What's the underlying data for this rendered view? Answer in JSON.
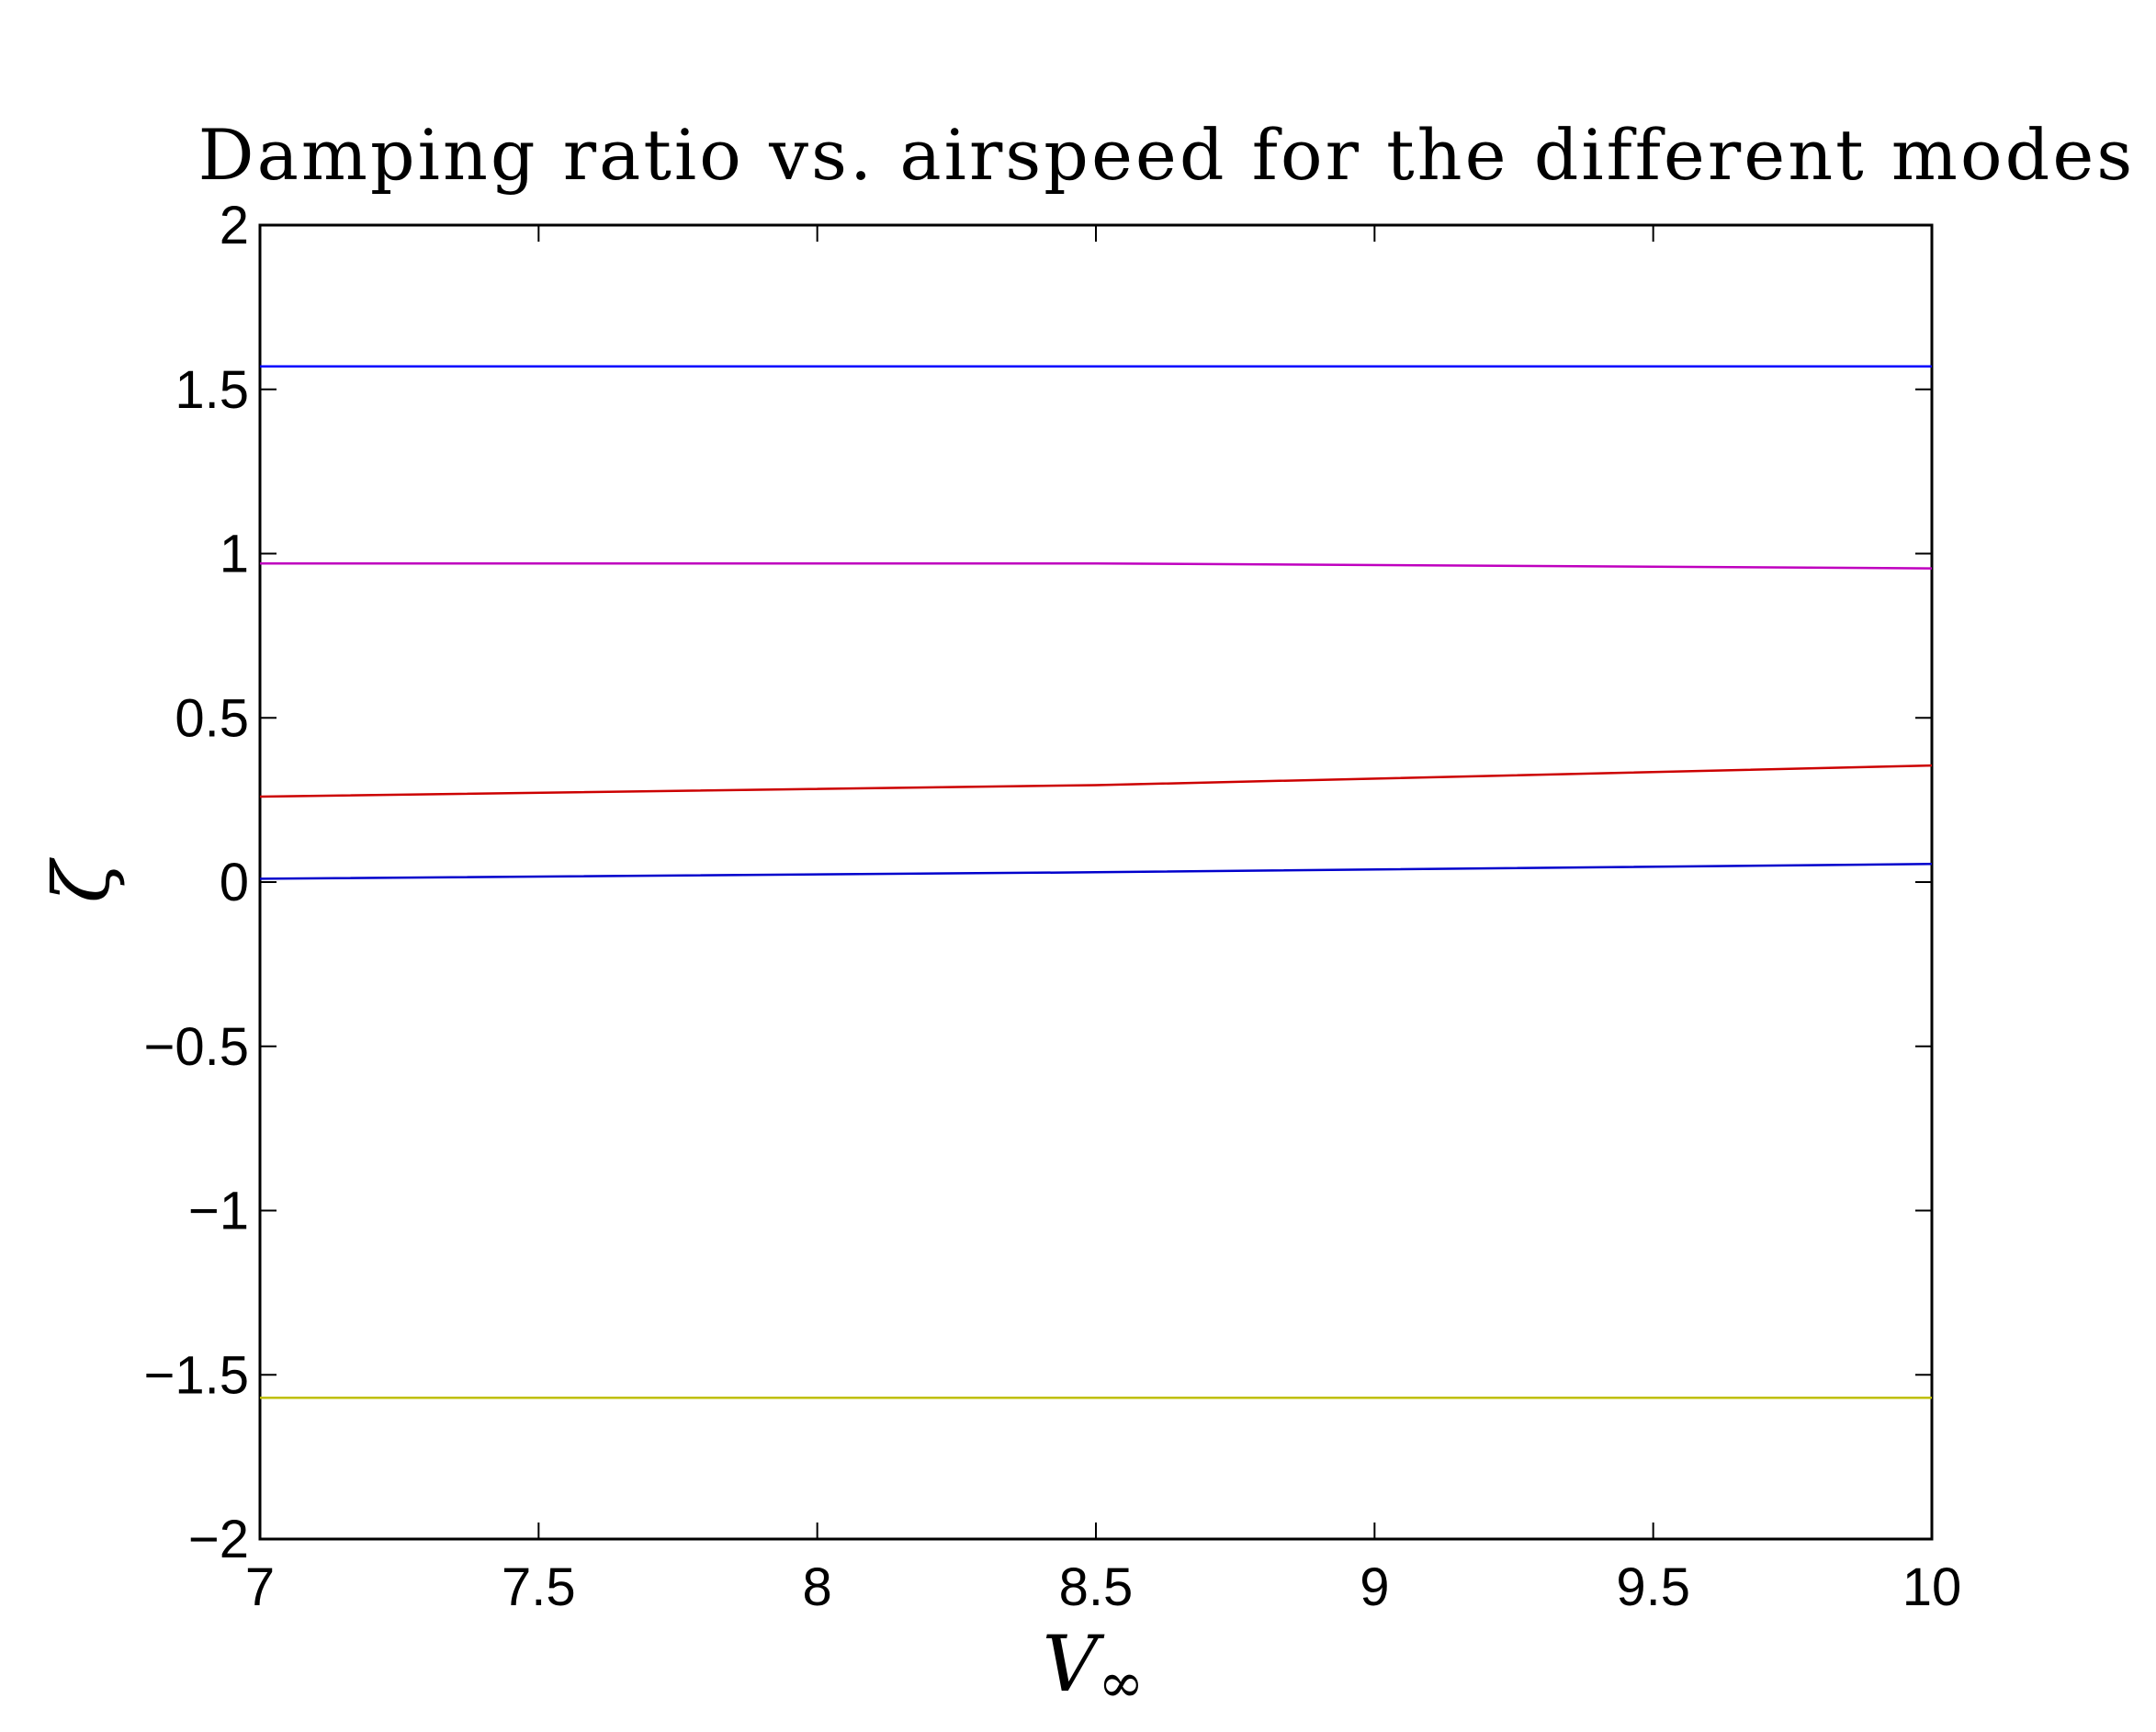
{
  "chart_data": {
    "type": "line",
    "title": "Damping ratio vs. airspeed for the different modes",
    "xlabel": "V",
    "xlabel_subscript": "∞",
    "ylabel": "ζ",
    "xlim": [
      7,
      10
    ],
    "ylim": [
      -2,
      2
    ],
    "xticks": [
      7,
      7.5,
      8,
      8.5,
      9,
      9.5,
      10
    ],
    "yticks": [
      -2,
      -1.5,
      -1,
      -0.5,
      0,
      0.5,
      1,
      1.5,
      2
    ],
    "xtick_labels": [
      "7",
      "7.5",
      "8",
      "8.5",
      "9",
      "9.5",
      "10"
    ],
    "ytick_labels": [
      "−2",
      "−1.5",
      "−1",
      "−0.5",
      "0",
      "0.5",
      "1",
      "1.5",
      "2"
    ],
    "grid": false,
    "series": [
      {
        "color": "#0000ff",
        "x": [
          7,
          8.5,
          10
        ],
        "values": [
          1.57,
          1.57,
          1.57
        ]
      },
      {
        "color": "#bf00bf",
        "x": [
          7,
          8.5,
          10
        ],
        "values": [
          0.97,
          0.97,
          0.955
        ]
      },
      {
        "color": "#cc0000",
        "x": [
          7,
          8.5,
          10
        ],
        "values": [
          0.26,
          0.295,
          0.355
        ]
      },
      {
        "color": "#0000cc",
        "x": [
          7,
          8.5,
          10
        ],
        "values": [
          0.01,
          0.03,
          0.055
        ]
      },
      {
        "color": "#bfbf00",
        "x": [
          7,
          8.5,
          10
        ],
        "values": [
          -1.57,
          -1.57,
          -1.57
        ]
      }
    ]
  }
}
